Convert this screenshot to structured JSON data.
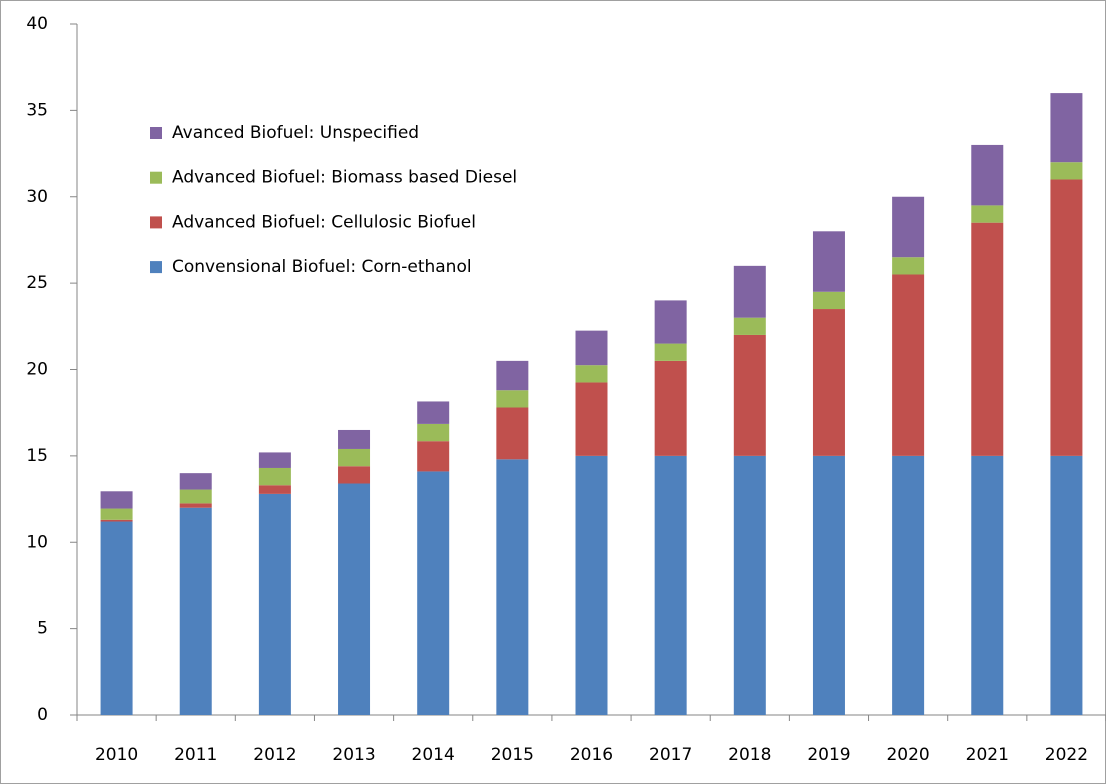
{
  "chart_data": {
    "type": "stacked-bar",
    "categories": [
      "2010",
      "2011",
      "2012",
      "2013",
      "2014",
      "2015",
      "2016",
      "2017",
      "2018",
      "2019",
      "2020",
      "2021",
      "2022"
    ],
    "series": [
      {
        "name": "Convensional Biofuel: Corn-ethanol",
        "color": "#4f81bd",
        "values": [
          11.2,
          12.0,
          12.8,
          13.4,
          14.1,
          14.8,
          15,
          15,
          15,
          15,
          15,
          15,
          15
        ]
      },
      {
        "name": "Advanced Biofuel: Cellulosic Biofuel",
        "color": "#c0504d",
        "values": [
          0.1,
          0.25,
          0.5,
          1.0,
          1.75,
          3.0,
          4.25,
          5.5,
          7.0,
          8.5,
          10.5,
          13.5,
          16
        ]
      },
      {
        "name": "Advanced Biofuel: Biomass based Diesel",
        "color": "#9bbb59",
        "values": [
          0.65,
          0.8,
          1.0,
          1.0,
          1.0,
          1.0,
          1.0,
          1.0,
          1.0,
          1.0,
          1.0,
          1.0,
          1.0
        ]
      },
      {
        "name": "Avanced Biofuel: Unspecified",
        "color": "#8064a2",
        "values": [
          1.0,
          0.95,
          0.9,
          1.1,
          1.3,
          1.7,
          2.0,
          2.5,
          3.0,
          3.5,
          3.5,
          3.5,
          4.0
        ]
      }
    ],
    "ylim": [
      0,
      40
    ],
    "yticks": [
      0,
      5,
      10,
      15,
      20,
      25,
      30,
      35,
      40
    ],
    "grid": false,
    "legend": "upper left"
  }
}
